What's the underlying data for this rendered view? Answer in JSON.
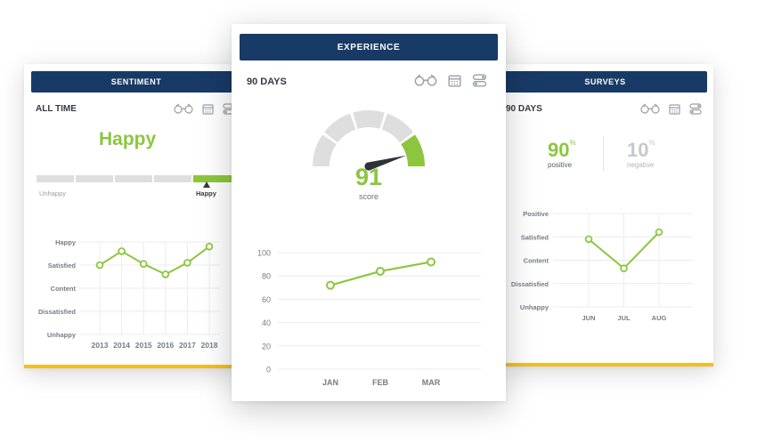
{
  "colors": {
    "navy": "#183a66",
    "green": "#8cc63f",
    "gray": "#dedede",
    "gold": "#f1be2a"
  },
  "sentiment": {
    "header": "SENTIMENT",
    "period": "ALL TIME",
    "status": "Happy",
    "scale_left": "Unhappy",
    "scale_right": "Happy",
    "scale_level": 1.0,
    "chart_data": {
      "type": "line",
      "x": [
        "2013",
        "2014",
        "2015",
        "2016",
        "2017",
        "2018"
      ],
      "y_categories": [
        "Unhappy",
        "Dissatisfied",
        "Content",
        "Satisfied",
        "Happy"
      ],
      "values": [
        3.0,
        3.6,
        3.05,
        2.6,
        3.1,
        3.8
      ]
    }
  },
  "experience": {
    "header": "EXPERIENCE",
    "period": "90 DAYS",
    "score": "91",
    "score_label": "score",
    "gauge_value": 91,
    "chart_data": {
      "type": "line",
      "x": [
        "JAN",
        "FEB",
        "MAR"
      ],
      "values": [
        72,
        84,
        92
      ],
      "y_ticks": [
        "0",
        "20",
        "40",
        "60",
        "80",
        "100"
      ],
      "ylim": [
        0,
        100
      ]
    }
  },
  "surveys": {
    "header": "SURVEYS",
    "period": "90 DAYS",
    "positive_value": "90",
    "positive_unit": "%",
    "positive_label": "positive",
    "negative_value": "10",
    "negative_unit": "%",
    "negative_label": "negative",
    "chart_data": {
      "type": "line",
      "x": [
        "JUN",
        "JUL",
        "AUG"
      ],
      "y_categories": [
        "Unhappy",
        "Dissatisfied",
        "Content",
        "Satisfied",
        "Positive"
      ],
      "values": [
        2.9,
        1.65,
        3.2
      ]
    }
  },
  "icons": [
    "glasses-icon",
    "calendar-icon",
    "toggle-icon"
  ]
}
